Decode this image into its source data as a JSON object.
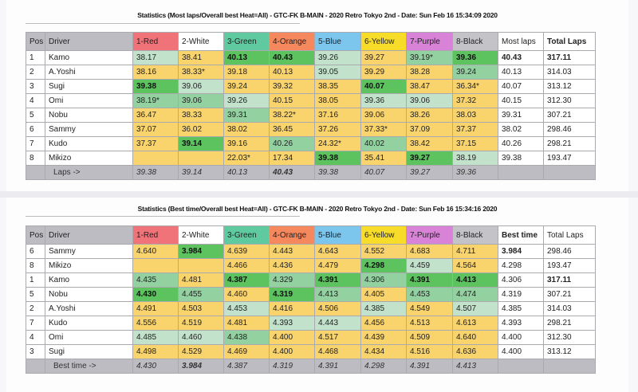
{
  "colors": {
    "red": "#f0737a",
    "white": "#ffffff",
    "green": "#5fc9a0",
    "orange": "#f5885c",
    "blue": "#7cc6ee",
    "yellow": "#f7dc2a",
    "purple": "#d883d8",
    "black": "#c4c3c8",
    "best_green": "#5cc35f",
    "mid_green": "#93d1a1",
    "light_green": "#c2e2cb",
    "yellow_cell": "#f9d36c"
  },
  "lanes": [
    "1-Red",
    "2-White",
    "3-Green",
    "4-Orange",
    "5-Blue",
    "6-Yellow",
    "7-Purple",
    "8-Black"
  ],
  "table1": {
    "title": "Statistics (Most laps/Overall best Heat=All) - GTC-FK B-MAIN - 2020 Retro Tokyo 2nd - Date: Sun Feb 16 15:34:09 2020",
    "headers": [
      "Pos",
      "Driver",
      "1-Red",
      "2-White",
      "3-Green",
      "4-Orange",
      "5-Blue",
      "6-Yellow",
      "7-Purple",
      "8-Black",
      "Most laps",
      "Total Laps"
    ],
    "rows": [
      {
        "pos": "1",
        "driver": "Kamo",
        "lanes": [
          "38.17",
          "38.41",
          "40.13",
          "40.43",
          "39.26",
          "39.27",
          "39.19*",
          "39.36"
        ],
        "tiers": [
          "L",
          "Y",
          "B",
          "B",
          "L",
          "Y",
          "M",
          "B"
        ],
        "best": "40.43",
        "total": "317.11",
        "bold": true
      },
      {
        "pos": "2",
        "driver": "A.Yoshi",
        "lanes": [
          "38.16",
          "38.33*",
          "39.18",
          "40.13",
          "39.05",
          "39.29",
          "38.28",
          "39.24"
        ],
        "tiers": [
          "Y",
          "Y",
          "Y",
          "Y",
          "L",
          "Y",
          "Y",
          "M"
        ],
        "best": "40.13",
        "total": "314.03",
        "bold": false
      },
      {
        "pos": "3",
        "driver": "Sugi",
        "lanes": [
          "39.38",
          "39.06",
          "39.24",
          "39.32",
          "38.35",
          "40.07",
          "38.47",
          "36.34*"
        ],
        "tiers": [
          "B",
          "L",
          "Y",
          "Y",
          "Y",
          "B",
          "Y",
          "Y"
        ],
        "best": "40.07",
        "total": "313.12",
        "bold": false
      },
      {
        "pos": "4",
        "driver": "Omi",
        "lanes": [
          "38.19*",
          "39.06",
          "39.26",
          "40.15",
          "38.05",
          "39.36",
          "39.06",
          "37.32"
        ],
        "tiers": [
          "M",
          "M",
          "L",
          "Y",
          "Y",
          "L",
          "L",
          "Y"
        ],
        "best": "40.15",
        "total": "312.30",
        "bold": false
      },
      {
        "pos": "5",
        "driver": "Nobu",
        "lanes": [
          "36.47",
          "38.33",
          "39.31",
          "38.22*",
          "37.16",
          "39.06",
          "38.26",
          "38.03"
        ],
        "tiers": [
          "Y",
          "Y",
          "M",
          "Y",
          "Y",
          "Y",
          "Y",
          "Y"
        ],
        "best": "39.31",
        "total": "307.21",
        "bold": false
      },
      {
        "pos": "6",
        "driver": "Sammy",
        "lanes": [
          "37.07",
          "36.02",
          "38.02",
          "36.45",
          "37.26",
          "37.33*",
          "37.09",
          "37.37"
        ],
        "tiers": [
          "Y",
          "Y",
          "Y",
          "Y",
          "Y",
          "Y",
          "Y",
          "Y"
        ],
        "best": "38.02",
        "total": "298.46",
        "bold": false
      },
      {
        "pos": "7",
        "driver": "Kudo",
        "lanes": [
          "37.37",
          "39.14",
          "39.16",
          "40.26",
          "24.32*",
          "40.02",
          "38.42",
          "37.15"
        ],
        "tiers": [
          "Y",
          "B",
          "Y",
          "M",
          "Y",
          "M",
          "Y",
          "Y"
        ],
        "best": "40.26",
        "total": "298.21",
        "bold": false
      },
      {
        "pos": "8",
        "driver": "Mikizo",
        "lanes": [
          "",
          "",
          "22.03*",
          "17.34",
          "39.38",
          "35.41",
          "39.27",
          "38.19"
        ],
        "tiers": [
          "Y",
          "Y",
          "Y",
          "Y",
          "B",
          "Y",
          "B",
          "L"
        ],
        "best": "39.38",
        "total": "193.47",
        "bold": false
      }
    ],
    "footer_label": "Laps ->",
    "footer": [
      "39.38",
      "39.14",
      "40.13",
      "40.43",
      "39.38",
      "40.07",
      "39.27",
      "39.36"
    ],
    "footer_bold": [
      false,
      false,
      false,
      true,
      false,
      false,
      false,
      false
    ]
  },
  "table2": {
    "title": "Statistics (Best time/Overall best Heat=All) - GTC-FK B-MAIN - 2020 Retro Tokyo 2nd - Date: Sun Feb 16 15:34:16 2020",
    "headers": [
      "Pos",
      "Driver",
      "1-Red",
      "2-White",
      "3-Green",
      "4-Orange",
      "5-Blue",
      "6-Yellow",
      "7-Purple",
      "8-Black",
      "Best time",
      "Total Laps"
    ],
    "rows": [
      {
        "pos": "6",
        "driver": "Sammy",
        "lanes": [
          "4.640",
          "3.984",
          "4.639",
          "4.443",
          "4.643",
          "4.552",
          "4.683",
          "4.711"
        ],
        "tiers": [
          "Y",
          "B",
          "Y",
          "Y",
          "Y",
          "Y",
          "Y",
          "Y"
        ],
        "best": "3.984",
        "total": "298.46",
        "best_bold": true,
        "total_bold": false
      },
      {
        "pos": "8",
        "driver": "Mikizo",
        "lanes": [
          "",
          "",
          "4.466",
          "4.436",
          "4.479",
          "4.298",
          "4.459",
          "4.564"
        ],
        "tiers": [
          "Y",
          "Y",
          "Y",
          "Y",
          "Y",
          "B",
          "L",
          "Y"
        ],
        "best": "4.298",
        "total": "193.47",
        "best_bold": false,
        "total_bold": false
      },
      {
        "pos": "1",
        "driver": "Kamo",
        "lanes": [
          "4.435",
          "4.481",
          "4.387",
          "4.329",
          "4.391",
          "4.306",
          "4.391",
          "4.413"
        ],
        "tiers": [
          "M",
          "Y",
          "B",
          "M",
          "B",
          "M",
          "B",
          "B"
        ],
        "best": "4.306",
        "total": "317.11",
        "best_bold": false,
        "total_bold": true
      },
      {
        "pos": "5",
        "driver": "Nobu",
        "lanes": [
          "4.430",
          "4.455",
          "4.460",
          "4.319",
          "4.413",
          "4.405",
          "4.453",
          "4.474"
        ],
        "tiers": [
          "B",
          "M",
          "Y",
          "B",
          "M",
          "Y",
          "M",
          "M"
        ],
        "best": "4.319",
        "total": "307.21",
        "best_bold": false,
        "total_bold": false
      },
      {
        "pos": "2",
        "driver": "A.Yoshi",
        "lanes": [
          "4.491",
          "4.503",
          "4.453",
          "4.416",
          "4.506",
          "4.385",
          "4.549",
          "4.507"
        ],
        "tiers": [
          "Y",
          "Y",
          "L",
          "Y",
          "Y",
          "L",
          "Y",
          "L"
        ],
        "best": "4.385",
        "total": "314.03",
        "best_bold": false,
        "total_bold": false
      },
      {
        "pos": "7",
        "driver": "Kudo",
        "lanes": [
          "4.556",
          "4.519",
          "4.481",
          "4.393",
          "4.443",
          "4.456",
          "4.513",
          "4.613"
        ],
        "tiers": [
          "Y",
          "Y",
          "Y",
          "L",
          "L",
          "Y",
          "Y",
          "Y"
        ],
        "best": "4.393",
        "total": "298.21",
        "best_bold": false,
        "total_bold": false
      },
      {
        "pos": "4",
        "driver": "Omi",
        "lanes": [
          "4.485",
          "4.460",
          "4.438",
          "4.400",
          "4.517",
          "4.439",
          "4.509",
          "4.640"
        ],
        "tiers": [
          "L",
          "L",
          "M",
          "Y",
          "Y",
          "Y",
          "Y",
          "Y"
        ],
        "best": "4.400",
        "total": "312.30",
        "best_bold": false,
        "total_bold": false
      },
      {
        "pos": "3",
        "driver": "Sugi",
        "lanes": [
          "4.498",
          "4.529",
          "4.469",
          "4.400",
          "4.468",
          "4.434",
          "4.516",
          "4.636"
        ],
        "tiers": [
          "Y",
          "Y",
          "Y",
          "Y",
          "Y",
          "Y",
          "Y",
          "Y"
        ],
        "best": "4.400",
        "total": "313.12",
        "best_bold": false,
        "total_bold": false
      }
    ],
    "footer_label": "Best time ->",
    "footer": [
      "4.430",
      "3.984",
      "4.387",
      "4.319",
      "4.391",
      "4.298",
      "4.391",
      "4.413"
    ],
    "footer_bold": [
      false,
      true,
      false,
      false,
      false,
      false,
      false,
      false
    ]
  }
}
